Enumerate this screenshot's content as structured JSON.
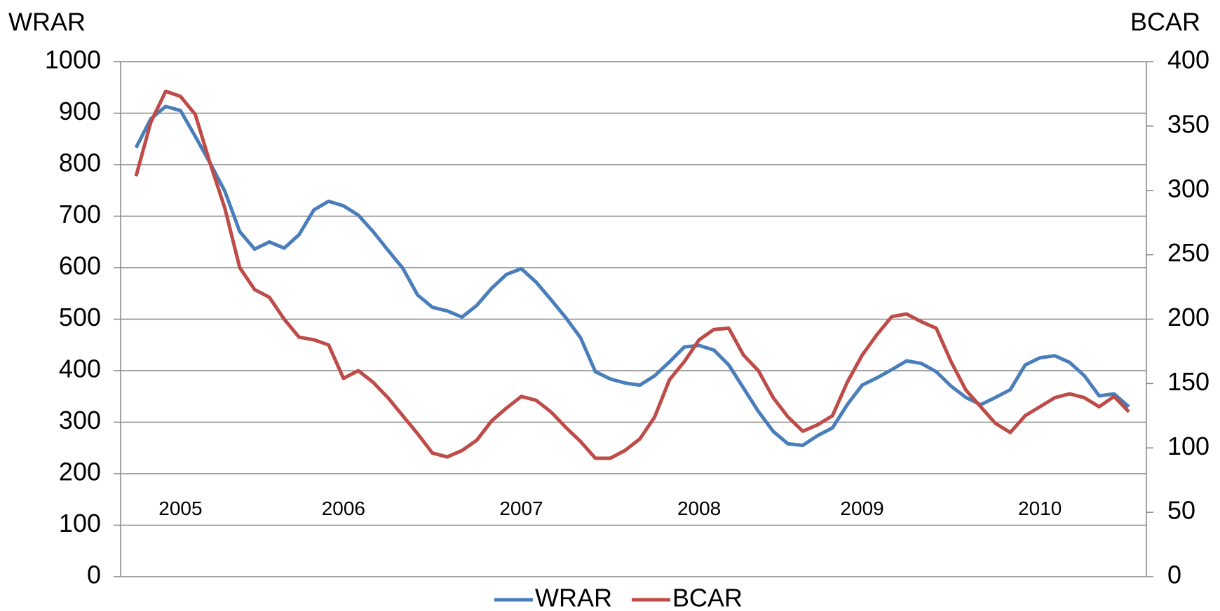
{
  "chart_data": {
    "type": "line",
    "y_label": "WRAR",
    "y2_label": "BCAR",
    "categories": [
      null,
      null,
      null,
      "2005",
      null,
      null,
      null,
      null,
      null,
      null,
      null,
      null,
      null,
      null,
      "2006",
      null,
      null,
      null,
      null,
      null,
      null,
      null,
      null,
      null,
      null,
      null,
      "2007",
      null,
      null,
      null,
      null,
      null,
      null,
      null,
      null,
      null,
      null,
      null,
      "2008",
      null,
      null,
      null,
      null,
      null,
      null,
      null,
      null,
      null,
      null,
      "2009",
      null,
      null,
      null,
      null,
      null,
      null,
      null,
      null,
      null,
      null,
      null,
      "2010",
      null,
      null,
      null,
      null,
      null,
      null
    ],
    "series": [
      {
        "name": "WRAR",
        "color": "#4a7ebb",
        "axis": "y",
        "values": [
          833,
          889,
          913,
          905,
          855,
          803,
          748,
          670,
          636,
          650,
          638,
          664,
          712,
          729,
          720,
          702,
          670,
          634,
          599,
          547,
          523,
          516,
          504,
          527,
          560,
          587,
          598,
          572,
          538,
          503,
          464,
          398,
          384,
          376,
          372,
          390,
          417,
          446,
          449,
          440,
          411,
          366,
          321,
          282,
          258,
          255,
          274,
          289,
          334,
          372,
          386,
          402,
          419,
          414,
          398,
          370,
          348,
          334,
          348,
          363,
          411,
          425,
          429,
          416,
          390,
          351,
          355,
          330
        ]
      },
      {
        "name": "BCAR",
        "color": "#be4b48",
        "axis": "y2",
        "values": [
          311,
          353,
          377,
          373,
          359,
          321,
          286,
          240,
          223,
          217,
          200,
          186,
          184,
          180,
          154,
          160,
          151,
          139,
          125,
          111,
          96,
          93,
          98,
          106,
          121,
          131,
          140,
          137,
          128,
          116,
          105,
          92,
          92,
          98,
          107,
          124,
          153,
          167,
          184,
          192,
          193,
          172,
          160,
          139,
          124,
          113,
          118,
          125,
          151,
          172,
          188,
          202,
          204,
          198,
          193,
          167,
          145,
          132,
          119,
          112,
          125,
          132,
          139,
          142,
          139,
          132,
          140,
          128
        ]
      }
    ],
    "ylim": [
      0,
      1000
    ],
    "yticks": [
      0,
      100,
      200,
      300,
      400,
      500,
      600,
      700,
      800,
      900,
      1000
    ],
    "y2lim": [
      0,
      400
    ],
    "y2ticks": [
      0,
      50,
      100,
      150,
      200,
      250,
      300,
      350,
      400
    ],
    "grid": true,
    "legend": "bottom"
  }
}
